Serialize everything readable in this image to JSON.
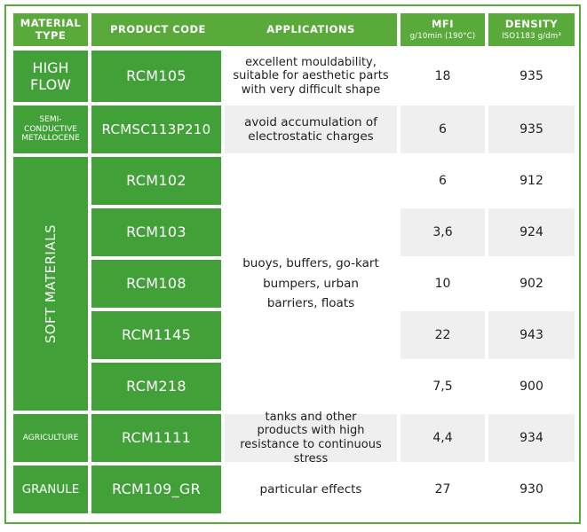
{
  "headers": {
    "material_type": "MATERIAL TYPE",
    "product_code": "PRODUCT CODE",
    "applications": "APPLICATIONS",
    "mfi": "MFI",
    "mfi_unit": "g/10min (190°C)",
    "density": "DENSITY",
    "density_unit": "ISO1183 g/dm³"
  },
  "groups": {
    "high_flow": "HIGH FLOW",
    "semi_conductive": "SEMI-CONDUCTIVE METALLOCENE",
    "soft_materials": "SOFT MATERIALS",
    "agriculture": "AGRICULTURE",
    "granule": "GRANULE"
  },
  "applications": {
    "high_flow": "excellent mouldability, suitable for aesthetic parts with very difficult shape",
    "semi_conductive": "avoid accumulation of electrostatic charges",
    "soft_materials": "buoys, buffers, go-kart bumpers, urban barriers, floats",
    "agriculture": "tanks and other products with high resistance to continuous stress",
    "granule": "particular effects"
  },
  "rows": [
    {
      "code": "RCM105",
      "mfi": "18",
      "density": "935"
    },
    {
      "code": "RCMSC113P210",
      "mfi": "6",
      "density": "935"
    },
    {
      "code": "RCM102",
      "mfi": "6",
      "density": "912"
    },
    {
      "code": "RCM103",
      "mfi": "3,6",
      "density": "924"
    },
    {
      "code": "RCM108",
      "mfi": "10",
      "density": "902"
    },
    {
      "code": "RCM1145",
      "mfi": "22",
      "density": "943"
    },
    {
      "code": "RCM218",
      "mfi": "7,5",
      "density": "900"
    },
    {
      "code": "RCM1111",
      "mfi": "4,4",
      "density": "934"
    },
    {
      "code": "RCM109_GR",
      "mfi": "27",
      "density": "930"
    }
  ]
}
